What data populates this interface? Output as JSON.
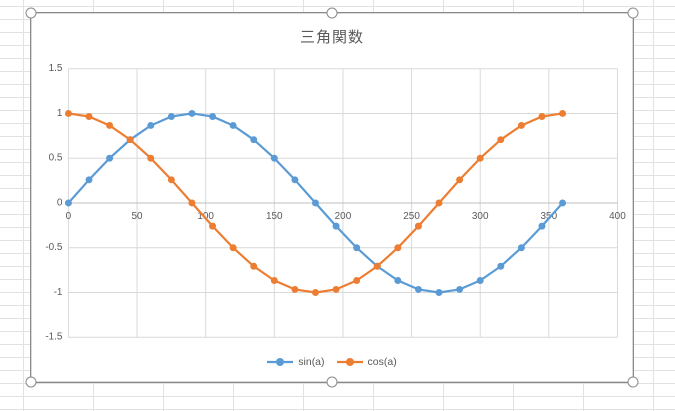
{
  "chart_data": {
    "type": "line",
    "title": "三角関数",
    "x": [
      0,
      15,
      30,
      45,
      60,
      75,
      90,
      105,
      120,
      135,
      150,
      165,
      180,
      195,
      210,
      225,
      240,
      255,
      270,
      285,
      300,
      315,
      330,
      345,
      360
    ],
    "series": [
      {
        "name": "sin(a)",
        "color": "#5B9BD5",
        "values": [
          0,
          0.2588,
          0.5,
          0.7071,
          0.866,
          0.9659,
          1,
          0.9659,
          0.866,
          0.7071,
          0.5,
          0.2588,
          0,
          -0.2588,
          -0.5,
          -0.7071,
          -0.866,
          -0.9659,
          -1,
          -0.9659,
          -0.866,
          -0.7071,
          -0.5,
          -0.2588,
          0
        ]
      },
      {
        "name": "cos(a)",
        "color": "#ED7D31",
        "values": [
          1,
          0.9659,
          0.866,
          0.7071,
          0.5,
          0.2588,
          0,
          -0.2588,
          -0.5,
          -0.7071,
          -0.866,
          -0.9659,
          -1,
          -0.9659,
          -0.866,
          -0.7071,
          -0.5,
          -0.2588,
          0,
          0.2588,
          0.5,
          0.7071,
          0.866,
          0.9659,
          1
        ]
      }
    ],
    "xlabel": "",
    "ylabel": "",
    "xlim": [
      0,
      400
    ],
    "ylim": [
      -1.5,
      1.5
    ],
    "x_ticks": [
      0,
      50,
      100,
      150,
      200,
      250,
      300,
      350,
      400
    ],
    "y_ticks": [
      1.5,
      1,
      0.5,
      0,
      -0.5,
      -1,
      -1.5
    ],
    "y_tick_labels": [
      "1.5",
      "1",
      "0.5",
      "0",
      "-0.5",
      "-1",
      "-1.5"
    ],
    "grid": true,
    "legend_position": "bottom",
    "marker": "circle"
  },
  "style": {
    "gridline_color": "#D9D9D9",
    "axis_line_color": "#BFBFBF",
    "tick_label_color": "#595959",
    "title_color": "#595959",
    "chart_background": "#FFFFFF",
    "worksheet_grid_color": "#E2E2E2",
    "selection_border_color": "#898989",
    "tick_font_size": 10
  }
}
